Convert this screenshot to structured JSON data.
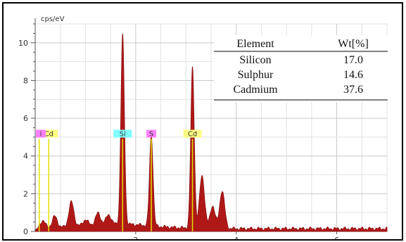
{
  "chart_data": {
    "type": "line",
    "ylabel": "cps/eV",
    "xlabel": "",
    "xlim": [
      0,
      7
    ],
    "ylim": [
      0,
      11
    ],
    "x_ticks": [
      "2",
      "4",
      "6"
    ],
    "y_ticks": [
      "0",
      "2",
      "4",
      "6",
      "8",
      "10"
    ],
    "grid": true,
    "series_color": "#b01818",
    "marker_color": "#e5e000",
    "peaks": [
      {
        "x": 0.15,
        "y": 0.4
      },
      {
        "x": 0.39,
        "y": 0.6
      },
      {
        "x": 0.72,
        "y": 1.3
      },
      {
        "x": 1.0,
        "y": 0.3
      },
      {
        "x": 1.25,
        "y": 0.6
      },
      {
        "x": 1.46,
        "y": 0.5
      },
      {
        "x": 1.74,
        "y": 10.0
      },
      {
        "x": 2.31,
        "y": 4.8
      },
      {
        "x": 3.13,
        "y": 8.5
      },
      {
        "x": 3.32,
        "y": 2.8
      },
      {
        "x": 3.53,
        "y": 1.2
      },
      {
        "x": 3.72,
        "y": 2.0
      }
    ],
    "element_markers": [
      {
        "label": "Cd",
        "x": 0.27,
        "badge_color": "#ffff80"
      },
      {
        "label": "i",
        "x": 0.08,
        "badge_color": "#ff80ff"
      },
      {
        "label": "Si",
        "x": 1.74,
        "badge_color": "#80ffff"
      },
      {
        "label": "S",
        "x": 2.31,
        "badge_color": "#ff80ff"
      },
      {
        "label": "Cd",
        "x": 3.13,
        "badge_color": "#ffff80"
      }
    ],
    "table": {
      "headers": [
        "Element",
        "Wt[%]"
      ],
      "rows": [
        [
          "Silicon",
          "17.0"
        ],
        [
          "Sulphur",
          "14.6"
        ],
        [
          "Cadmium",
          "37.6"
        ]
      ]
    }
  }
}
